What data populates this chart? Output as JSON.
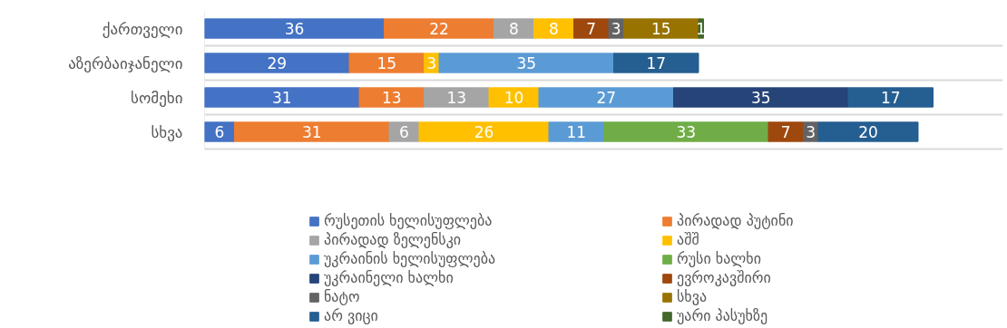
{
  "chart_data": {
    "type": "bar",
    "orientation": "horizontal",
    "stacked": true,
    "data_labels": true,
    "grid": "y",
    "legend": "bottom",
    "tick_labels": "y",
    "xlim": [
      0,
      160
    ],
    "categories": [
      "ქართველი",
      "აზერბაიჯანელი",
      "სომეხი",
      "სხვა"
    ],
    "series": [
      {
        "name": "რუსეთის ხელისუფლება",
        "color": "#4472c4",
        "values": [
          36,
          29,
          31,
          6
        ]
      },
      {
        "name": "პირადად პუტინი",
        "color": "#ed7d31",
        "values": [
          22,
          15,
          13,
          31
        ]
      },
      {
        "name": "პირადად ზელენსკი",
        "color": "#a5a5a5",
        "values": [
          8,
          null,
          13,
          6
        ]
      },
      {
        "name": "აშშ",
        "color": "#ffc000",
        "values": [
          8,
          3,
          10,
          26
        ]
      },
      {
        "name": "უკრაინის ხელისუფლება",
        "color": "#5b9bd5",
        "values": [
          null,
          35,
          27,
          11
        ]
      },
      {
        "name": "რუსი ხალხი",
        "color": "#70ad47",
        "values": [
          null,
          null,
          null,
          33
        ]
      },
      {
        "name": "უკრაინელი ხალხი",
        "color": "#264478",
        "values": [
          null,
          null,
          35,
          null
        ]
      },
      {
        "name": "ევროკავშირი",
        "color": "#9e480e",
        "values": [
          7,
          null,
          null,
          7
        ]
      },
      {
        "name": "ნატო",
        "color": "#636363",
        "values": [
          3,
          null,
          null,
          3
        ]
      },
      {
        "name": "სხვა",
        "color": "#997300",
        "values": [
          15,
          null,
          null,
          null
        ]
      },
      {
        "name": "არ ვიცი",
        "color": "#255e91",
        "values": [
          null,
          17,
          17,
          20
        ]
      },
      {
        "name": "უარი პასუხზე",
        "color": "#43682b",
        "values": [
          1,
          null,
          null,
          null
        ]
      }
    ]
  }
}
